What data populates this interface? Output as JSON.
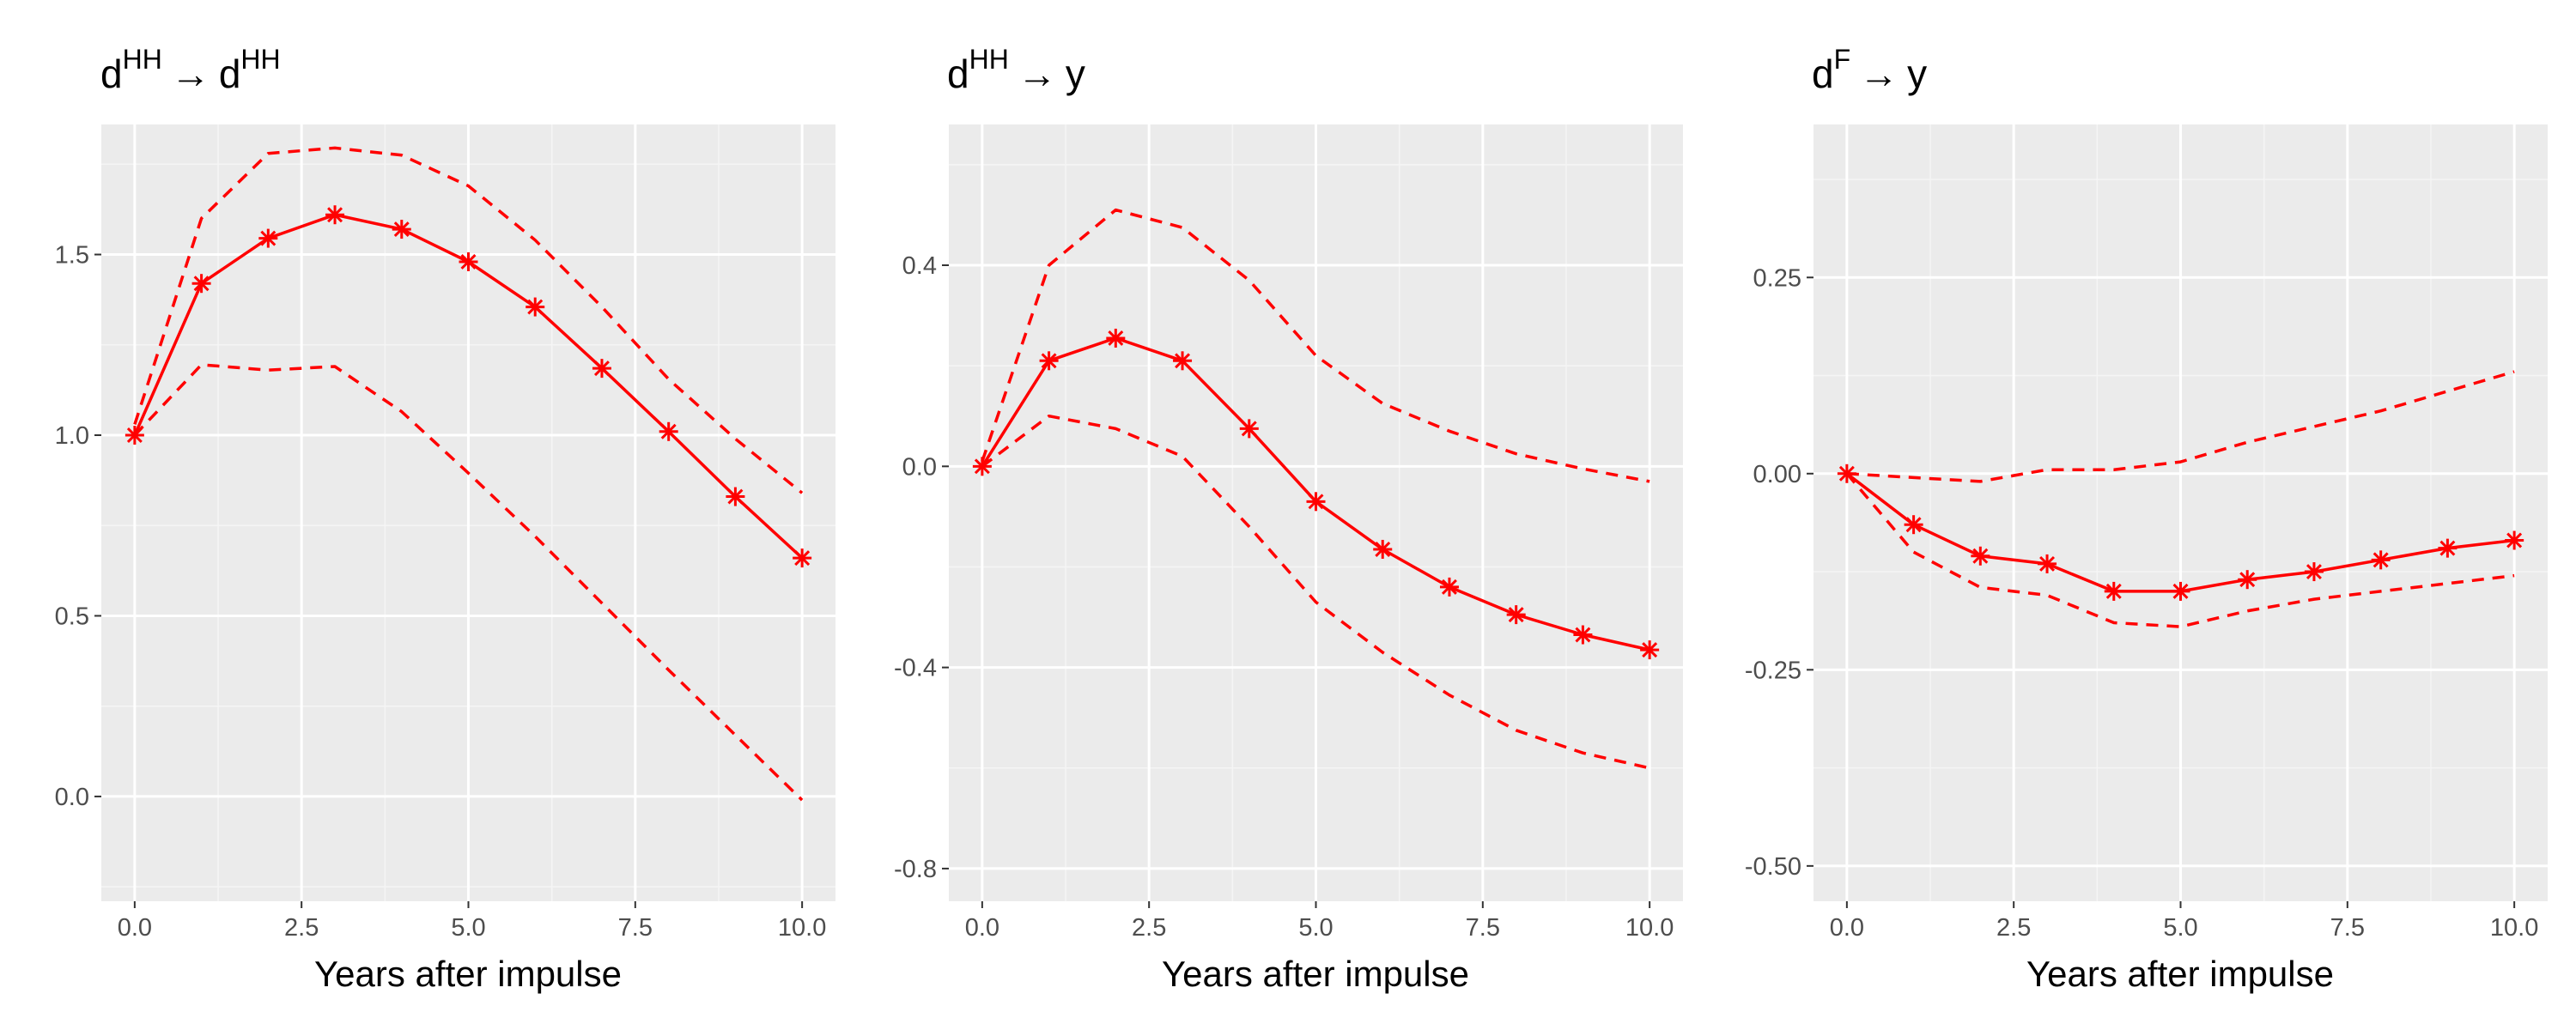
{
  "chart_data": [
    {
      "type": "line",
      "title": {
        "base1": "d",
        "sup1": "HH",
        "arrow": "→",
        "base2": "d",
        "sup2": "HH"
      },
      "xlabel": "Years after impulse",
      "ylabel": "",
      "xlim": [
        -0.5,
        10.5
      ],
      "ylim": [
        -0.29,
        1.86
      ],
      "xticks": [
        0,
        2.5,
        5,
        7.5,
        10
      ],
      "xtick_labels": [
        "0.0",
        "2.5",
        "5.0",
        "7.5",
        "10.0"
      ],
      "yticks": [
        0,
        0.5,
        1,
        1.5
      ],
      "ytick_labels": [
        "0.0",
        "0.5",
        "1.0",
        "1.5"
      ],
      "grid": true,
      "x": [
        0,
        1,
        2,
        3,
        4,
        5,
        6,
        7,
        8,
        9,
        10
      ],
      "series": [
        {
          "role": "estimate",
          "style": "solid-with-markers",
          "values": [
            1.0,
            1.42,
            1.545,
            1.61,
            1.57,
            1.48,
            1.355,
            1.185,
            1.01,
            0.83,
            0.66
          ]
        },
        {
          "role": "upper",
          "style": "dashed",
          "values": [
            1.03,
            1.6,
            1.78,
            1.795,
            1.775,
            1.69,
            1.54,
            1.355,
            1.155,
            0.99,
            0.84
          ]
        },
        {
          "role": "lower",
          "style": "dashed",
          "values": [
            1.0,
            1.195,
            1.18,
            1.19,
            1.065,
            0.895,
            0.72,
            0.535,
            0.35,
            0.17,
            -0.01
          ]
        }
      ]
    },
    {
      "type": "line",
      "title": {
        "base1": "d",
        "sup1": "HH",
        "arrow": "→",
        "base2": "y",
        "sup2": ""
      },
      "xlabel": "Years after impulse",
      "ylabel": "",
      "xlim": [
        -0.5,
        10.5
      ],
      "ylim": [
        -0.865,
        0.68
      ],
      "xticks": [
        0,
        2.5,
        5,
        7.5,
        10
      ],
      "xtick_labels": [
        "0.0",
        "2.5",
        "5.0",
        "7.5",
        "10.0"
      ],
      "yticks": [
        -0.8,
        -0.4,
        0.0,
        0.4
      ],
      "ytick_labels": [
        "-0.8",
        "-0.4",
        "0.0",
        "0.4"
      ],
      "grid": true,
      "x": [
        0,
        1,
        2,
        3,
        4,
        5,
        6,
        7,
        8,
        9,
        10
      ],
      "series": [
        {
          "role": "estimate",
          "style": "solid-with-markers",
          "values": [
            0.0,
            0.21,
            0.255,
            0.21,
            0.075,
            -0.07,
            -0.165,
            -0.24,
            -0.295,
            -0.335,
            -0.365
          ]
        },
        {
          "role": "upper",
          "style": "dashed",
          "values": [
            0.01,
            0.4,
            0.51,
            0.475,
            0.37,
            0.22,
            0.125,
            0.07,
            0.025,
            -0.005,
            -0.03
          ]
        },
        {
          "role": "lower",
          "style": "dashed",
          "values": [
            0.0,
            0.1,
            0.075,
            0.02,
            -0.12,
            -0.27,
            -0.37,
            -0.455,
            -0.525,
            -0.57,
            -0.6
          ]
        }
      ]
    },
    {
      "type": "line",
      "title": {
        "base1": "d",
        "sup1": "F",
        "arrow": "→",
        "base2": "y",
        "sup2": ""
      },
      "xlabel": "Years after impulse",
      "ylabel": "",
      "xlim": [
        -0.5,
        10.5
      ],
      "ylim": [
        -0.545,
        0.445
      ],
      "xticks": [
        0,
        2.5,
        5,
        7.5,
        10
      ],
      "xtick_labels": [
        "0.0",
        "2.5",
        "5.0",
        "7.5",
        "10.0"
      ],
      "yticks": [
        -0.5,
        -0.25,
        0.0,
        0.25
      ],
      "ytick_labels": [
        "-0.50",
        "-0.25",
        "0.00",
        "0.25"
      ],
      "grid": true,
      "x": [
        0,
        1,
        2,
        3,
        4,
        5,
        6,
        7,
        8,
        9,
        10
      ],
      "series": [
        {
          "role": "estimate",
          "style": "solid-with-markers",
          "values": [
            0.0,
            -0.065,
            -0.105,
            -0.115,
            -0.15,
            -0.15,
            -0.135,
            -0.125,
            -0.11,
            -0.095,
            -0.085
          ]
        },
        {
          "role": "upper",
          "style": "dashed",
          "values": [
            0.0,
            -0.005,
            -0.01,
            0.005,
            0.005,
            0.015,
            0.04,
            0.06,
            0.08,
            0.105,
            0.13
          ]
        },
        {
          "role": "lower",
          "style": "dashed",
          "values": [
            0.0,
            -0.1,
            -0.145,
            -0.155,
            -0.19,
            -0.195,
            -0.175,
            -0.16,
            -0.15,
            -0.14,
            -0.13
          ]
        }
      ]
    }
  ],
  "colors": {
    "panel_background": "#ebebeb",
    "grid_major": "#ffffff",
    "grid_minor": "#f5f5f5",
    "series": "#ff0000",
    "tick_text": "#4d4d4d",
    "tick_mark": "#333333"
  }
}
